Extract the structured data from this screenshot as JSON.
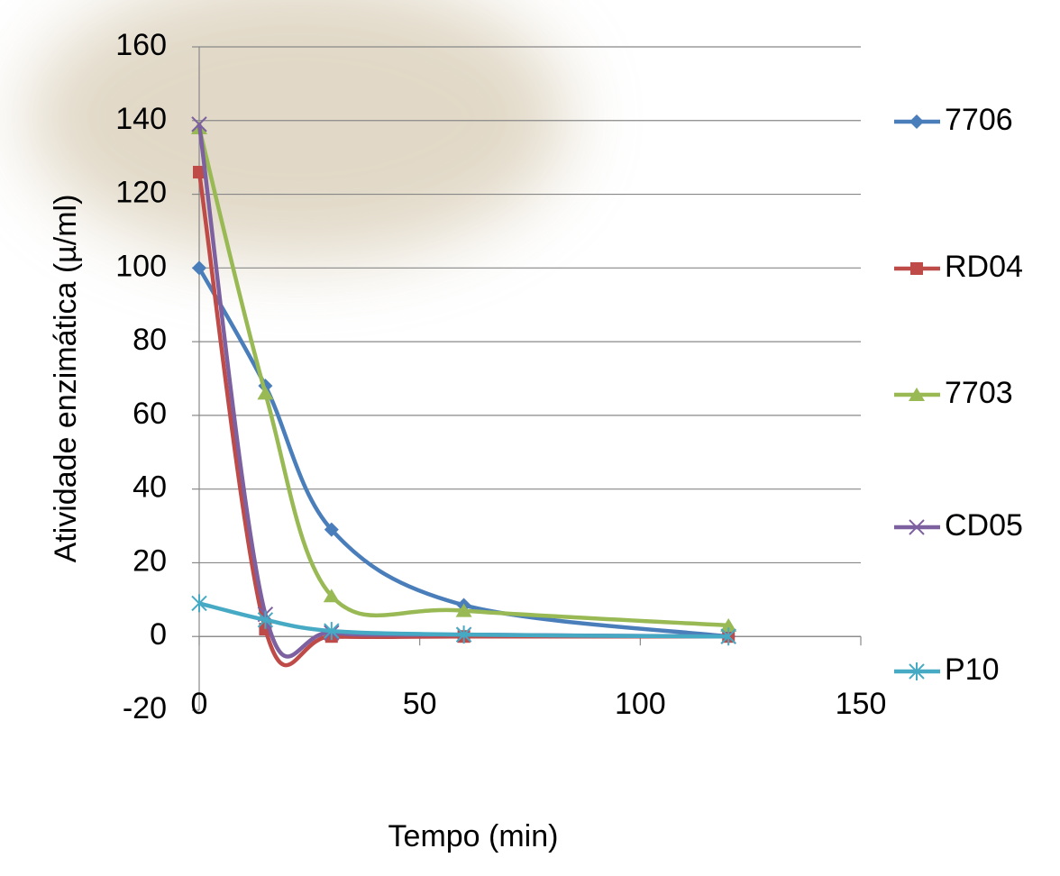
{
  "chart_data": {
    "type": "line",
    "x_label": "Tempo (min)",
    "y_label": "Atividade enzimática (µ/ml)",
    "x": [
      0,
      15,
      30,
      60,
      120
    ],
    "series": [
      {
        "name": "7706",
        "color": "#4a7ebb",
        "marker": "diamond",
        "values": [
          100,
          68,
          29,
          8.5,
          0
        ]
      },
      {
        "name": "RD04",
        "color": "#be4b48",
        "marker": "square",
        "values": [
          126,
          2,
          0,
          0,
          0
        ]
      },
      {
        "name": "7703",
        "color": "#98b954",
        "marker": "triangle",
        "values": [
          138,
          66,
          11,
          7,
          3
        ]
      },
      {
        "name": "CD05",
        "color": "#7d60a0",
        "marker": "x",
        "values": [
          139,
          6,
          1,
          0.5,
          0
        ]
      },
      {
        "name": "P10",
        "color": "#46aac5",
        "marker": "star",
        "values": [
          9,
          4.5,
          1.5,
          0.5,
          0
        ]
      }
    ],
    "xlim": [
      0,
      150
    ],
    "xticks": [
      0,
      50,
      100,
      150
    ],
    "ylim": [
      -20,
      160
    ],
    "yticks": [
      -20,
      0,
      20,
      40,
      60,
      80,
      100,
      120,
      140,
      160
    ],
    "grid": true,
    "smooth": true,
    "legend": "right"
  }
}
